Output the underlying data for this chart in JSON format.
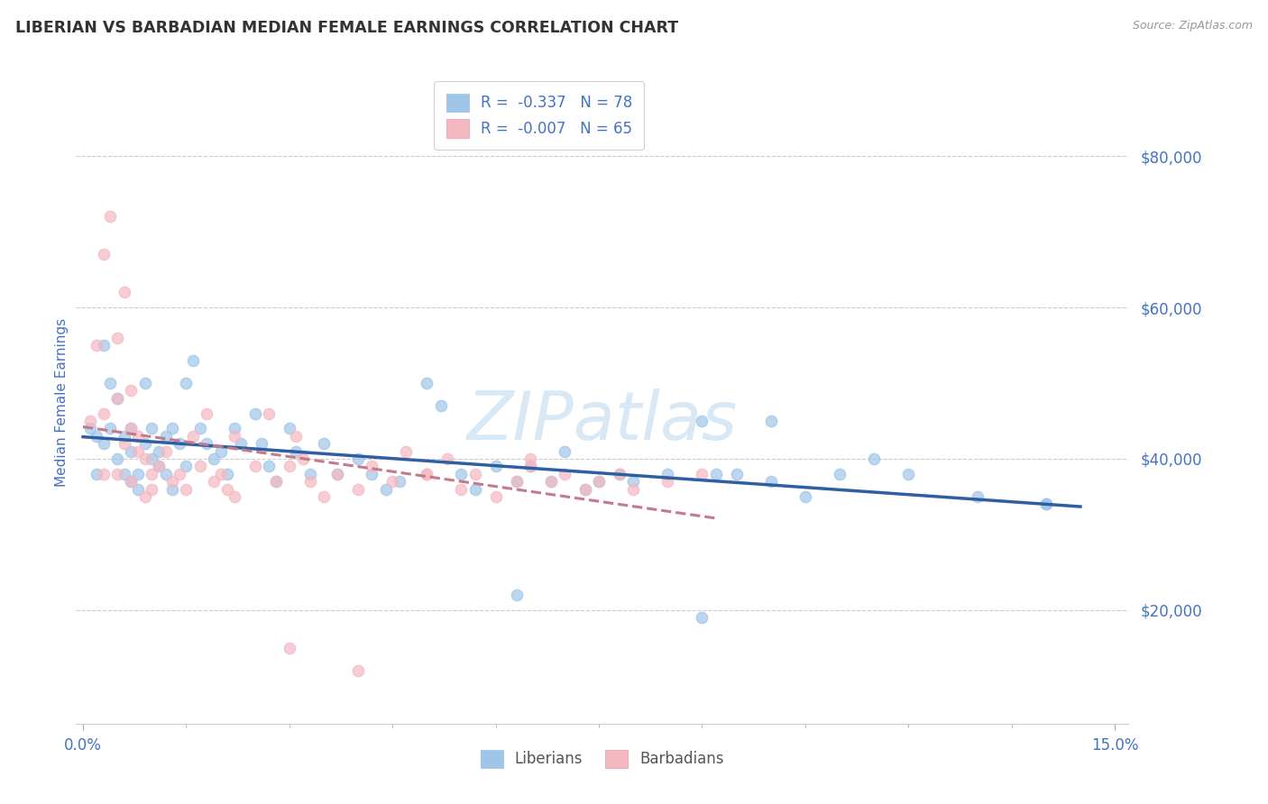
{
  "title": "LIBERIAN VS BARBADIAN MEDIAN FEMALE EARNINGS CORRELATION CHART",
  "source": "Source: ZipAtlas.com",
  "ylabel": "Median Female Earnings",
  "xlim": [
    -0.001,
    0.152
  ],
  "ylim": [
    5000,
    90000
  ],
  "yticks": [
    20000,
    40000,
    60000,
    80000
  ],
  "xtick_start": 0.0,
  "xtick_end": 0.15,
  "xtick_step": 0.015,
  "title_color": "#333333",
  "source_color": "#999999",
  "axis_label_color": "#4472c4",
  "tick_color": "#4472c4",
  "background_color": "#ffffff",
  "grid_color": "#cccccc",
  "legend_text_color": "#4472c4",
  "liberian_color": "#9fc5e8",
  "barbadian_color": "#f4b8c1",
  "trend_blue_color": "#2e5fa3",
  "trend_pink_color": "#c47a8a",
  "watermark_color": "#d8e8f5",
  "R_lib": -0.337,
  "N_lib": 78,
  "R_bar": -0.007,
  "N_bar": 65,
  "liberian_x": [
    0.001,
    0.002,
    0.002,
    0.003,
    0.003,
    0.004,
    0.004,
    0.005,
    0.005,
    0.006,
    0.006,
    0.007,
    0.007,
    0.007,
    0.008,
    0.008,
    0.009,
    0.009,
    0.01,
    0.01,
    0.011,
    0.011,
    0.012,
    0.012,
    0.013,
    0.013,
    0.014,
    0.015,
    0.015,
    0.016,
    0.017,
    0.018,
    0.019,
    0.02,
    0.021,
    0.022,
    0.023,
    0.025,
    0.026,
    0.027,
    0.028,
    0.03,
    0.031,
    0.033,
    0.035,
    0.037,
    0.04,
    0.042,
    0.044,
    0.046,
    0.05,
    0.052,
    0.055,
    0.057,
    0.06,
    0.063,
    0.065,
    0.068,
    0.07,
    0.073,
    0.075,
    0.078,
    0.08,
    0.085,
    0.09,
    0.092,
    0.095,
    0.1,
    0.105,
    0.11,
    0.115,
    0.12,
    0.13,
    0.14,
    0.063,
    0.09,
    0.1,
    0.14
  ],
  "liberian_y": [
    44000,
    43000,
    38000,
    55000,
    42000,
    50000,
    44000,
    48000,
    40000,
    43000,
    38000,
    44000,
    41000,
    37000,
    38000,
    36000,
    50000,
    42000,
    44000,
    40000,
    41000,
    39000,
    43000,
    38000,
    44000,
    36000,
    42000,
    50000,
    39000,
    53000,
    44000,
    42000,
    40000,
    41000,
    38000,
    44000,
    42000,
    46000,
    42000,
    39000,
    37000,
    44000,
    41000,
    38000,
    42000,
    38000,
    40000,
    38000,
    36000,
    37000,
    50000,
    47000,
    38000,
    36000,
    39000,
    37000,
    39000,
    37000,
    41000,
    36000,
    37000,
    38000,
    37000,
    38000,
    45000,
    38000,
    38000,
    37000,
    35000,
    38000,
    40000,
    38000,
    35000,
    34000,
    22000,
    19000,
    45000,
    34000
  ],
  "barbadian_x": [
    0.001,
    0.002,
    0.003,
    0.003,
    0.004,
    0.005,
    0.005,
    0.006,
    0.006,
    0.007,
    0.007,
    0.008,
    0.008,
    0.009,
    0.009,
    0.01,
    0.01,
    0.011,
    0.012,
    0.013,
    0.014,
    0.015,
    0.016,
    0.017,
    0.018,
    0.019,
    0.02,
    0.021,
    0.022,
    0.025,
    0.027,
    0.028,
    0.03,
    0.031,
    0.032,
    0.033,
    0.035,
    0.037,
    0.04,
    0.042,
    0.045,
    0.047,
    0.05,
    0.053,
    0.055,
    0.057,
    0.06,
    0.063,
    0.065,
    0.068,
    0.07,
    0.073,
    0.075,
    0.078,
    0.08,
    0.085,
    0.003,
    0.005,
    0.007,
    0.022,
    0.03,
    0.04,
    0.05,
    0.065,
    0.09
  ],
  "barbadian_y": [
    45000,
    55000,
    46000,
    38000,
    72000,
    48000,
    38000,
    42000,
    62000,
    44000,
    37000,
    41000,
    43000,
    35000,
    40000,
    38000,
    36000,
    39000,
    41000,
    37000,
    38000,
    36000,
    43000,
    39000,
    46000,
    37000,
    38000,
    36000,
    43000,
    39000,
    46000,
    37000,
    39000,
    43000,
    40000,
    37000,
    35000,
    38000,
    36000,
    39000,
    37000,
    41000,
    38000,
    40000,
    36000,
    38000,
    35000,
    37000,
    39000,
    37000,
    38000,
    36000,
    37000,
    38000,
    36000,
    37000,
    67000,
    56000,
    49000,
    35000,
    15000,
    12000,
    38000,
    40000,
    38000
  ]
}
